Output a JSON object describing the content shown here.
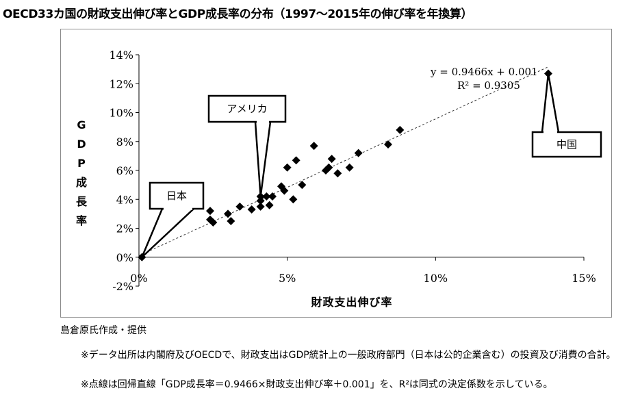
{
  "title": "OECD33カ国の財政支出伸び率とGDP成長率の分布（1997〜2015年の伸び率を年換算）",
  "credit": "島倉原氏作成・提供",
  "notes": [
    "※データ出所は内閣府及びOECDで、財政支出はGDP統計上の一般政府部門（日本は公的企業含む）の投資及び消費の合計。",
    "※点線は回帰直線「GDP成長率＝0.9466×財政支出伸び率＋0.001」を、R²は同式の決定係数を示している。"
  ],
  "chart_data": {
    "type": "scatter",
    "title": "OECD33カ国の財政支出伸び率とGDP成長率の分布（1997〜2015年の伸び率を年換算）",
    "xlabel": "財政支出伸び率",
    "ylabel": "GDP成長率",
    "xlim": [
      0,
      15
    ],
    "ylim": [
      -2,
      14
    ],
    "xticks": [
      0,
      5,
      10,
      15
    ],
    "xtick_labels": [
      "0%",
      "5%",
      "10%",
      "15%"
    ],
    "yticks": [
      -2,
      0,
      2,
      4,
      6,
      8,
      10,
      12,
      14
    ],
    "ytick_labels": [
      "-2%",
      "0%",
      "2%",
      "4%",
      "6%",
      "8%",
      "10%",
      "12%",
      "14%"
    ],
    "grid": false,
    "marker_color": "#000000",
    "points": [
      [
        0.1,
        0.0
      ],
      [
        2.4,
        3.2
      ],
      [
        2.4,
        2.6
      ],
      [
        2.5,
        2.4
      ],
      [
        3.0,
        3.0
      ],
      [
        3.1,
        2.5
      ],
      [
        3.4,
        3.5
      ],
      [
        3.8,
        3.3
      ],
      [
        4.1,
        3.5
      ],
      [
        4.1,
        4.2
      ],
      [
        4.1,
        3.9
      ],
      [
        4.3,
        4.2
      ],
      [
        4.4,
        3.6
      ],
      [
        4.5,
        4.2
      ],
      [
        4.8,
        4.9
      ],
      [
        4.9,
        4.6
      ],
      [
        5.0,
        6.2
      ],
      [
        5.2,
        4.0
      ],
      [
        5.3,
        6.7
      ],
      [
        5.5,
        5.0
      ],
      [
        5.9,
        7.7
      ],
      [
        6.3,
        6.0
      ],
      [
        6.4,
        6.2
      ],
      [
        6.5,
        6.8
      ],
      [
        6.7,
        5.8
      ],
      [
        7.1,
        6.2
      ],
      [
        7.4,
        7.2
      ],
      [
        8.4,
        7.8
      ],
      [
        8.8,
        8.8
      ],
      [
        13.8,
        12.7
      ]
    ],
    "regression": {
      "slope": 0.9466,
      "intercept": 0.1,
      "x_range": [
        0,
        13.8
      ],
      "equation_label": "y = 0.9466x + 0.001",
      "r2_label": "R² = 0.9305"
    },
    "annotations": [
      {
        "label": "日本",
        "x": 0.1,
        "y": 0.0
      },
      {
        "label": "アメリカ",
        "x": 4.1,
        "y": 4.2
      },
      {
        "label": "中国",
        "x": 13.8,
        "y": 12.7
      }
    ]
  }
}
